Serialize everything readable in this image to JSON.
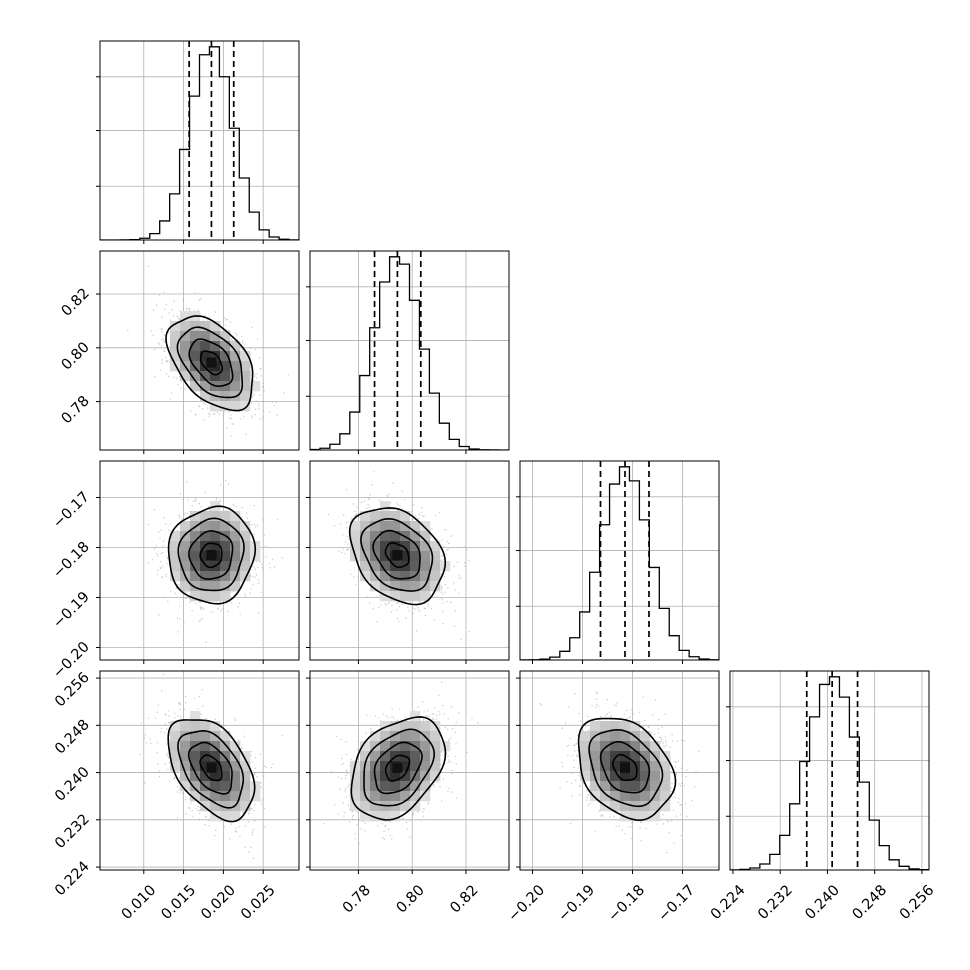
{
  "chart_data": {
    "type": "corner",
    "parameters": [
      {
        "mean": 0.0185,
        "std": 0.0027,
        "lim": [
          0.0045,
          0.0295
        ],
        "ticks": [
          0.01,
          0.015,
          0.02,
          0.025
        ],
        "tick_labels": [
          "0.010",
          "0.015",
          "0.020",
          "0.025"
        ],
        "quantiles": [
          0.0157,
          0.0185,
          0.0213
        ]
      },
      {
        "mean": 0.7945,
        "std": 0.0087,
        "lim": [
          0.762,
          0.836
        ],
        "ticks": [
          0.78,
          0.8,
          0.82
        ],
        "tick_labels": [
          "0.78",
          "0.80",
          "0.82"
        ],
        "quantiles": [
          0.786,
          0.7945,
          0.8032
        ]
      },
      {
        "mean": -0.1815,
        "std": 0.0048,
        "lim": [
          -0.2025,
          -0.1627
        ],
        "ticks": [
          -0.2,
          -0.19,
          -0.18,
          -0.17
        ],
        "tick_labels": [
          "−0.20",
          "−0.19",
          "−0.18",
          "−0.17"
        ],
        "quantiles": [
          -0.1864,
          -0.1815,
          -0.1767
        ]
      },
      {
        "mean": 0.2408,
        "std": 0.0043,
        "lim": [
          0.2235,
          0.2572
        ],
        "ticks": [
          0.224,
          0.232,
          0.24,
          0.248,
          0.256
        ],
        "tick_labels": [
          "0.224",
          "0.232",
          "0.240",
          "0.248",
          "0.256"
        ],
        "quantiles": [
          0.2365,
          0.2408,
          0.2451
        ]
      }
    ],
    "correlations": [
      [
        1.0,
        -0.45,
        0.05,
        -0.45
      ],
      [
        -0.45,
        1.0,
        -0.3,
        0.35
      ],
      [
        0.05,
        -0.3,
        1.0,
        -0.3
      ],
      [
        -0.45,
        0.35,
        -0.3,
        1.0
      ]
    ],
    "histogram_bins": 20,
    "contour_levels": [
      "0.5-sigma",
      "1-sigma",
      "1.5-sigma",
      "2-sigma"
    ],
    "grid": true,
    "title": "",
    "xlabel": "",
    "ylabel": ""
  }
}
